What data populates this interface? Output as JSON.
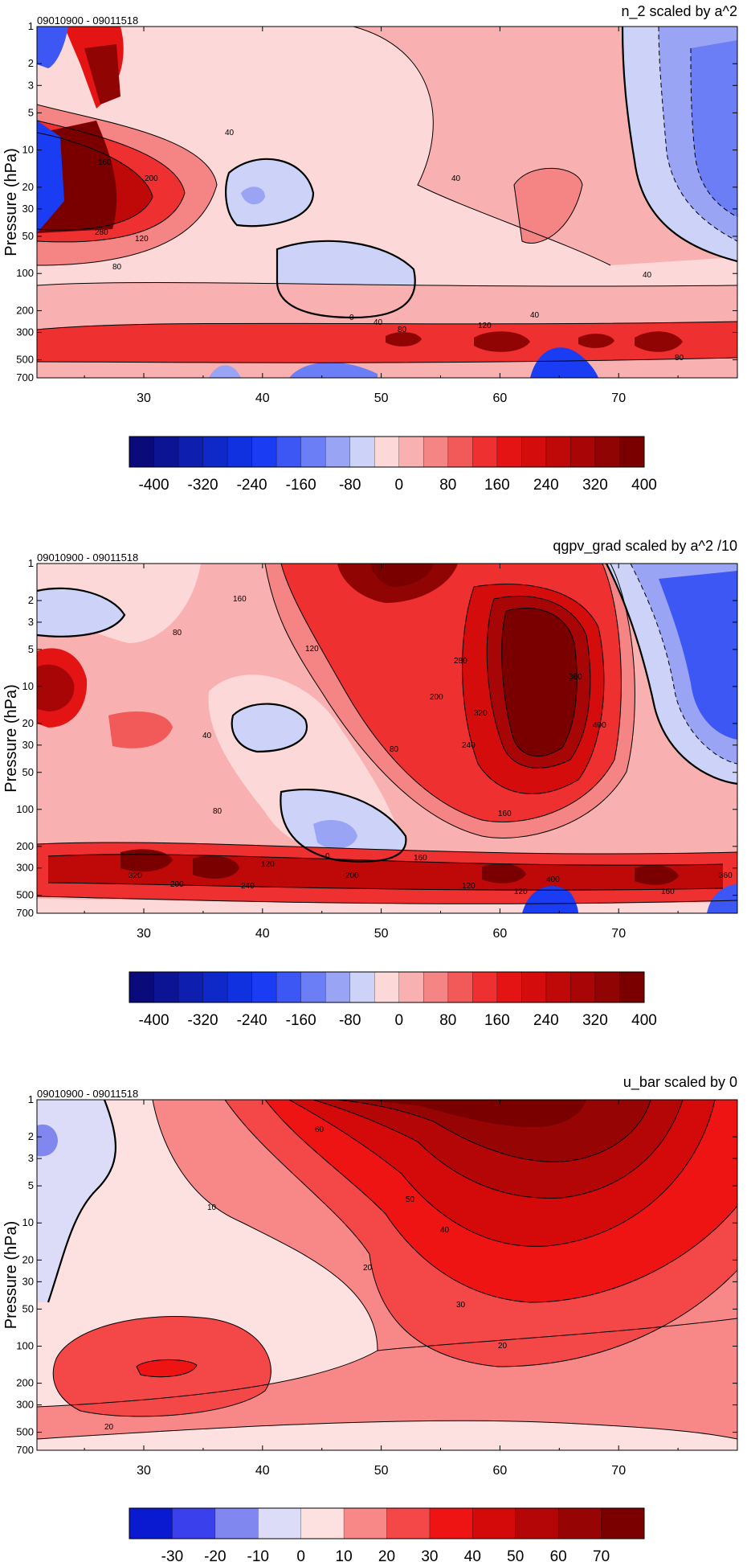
{
  "colors": {
    "neg": [
      "#0a0a7a",
      "#0c1494",
      "#0e1eae",
      "#0f28c8",
      "#1031e0",
      "#1a3cf2",
      "#3c57f4",
      "#6b7ef5",
      "#9aa4f5",
      "#cdd3f8"
    ],
    "pos": [
      "#fcd8d8",
      "#f9b0b0",
      "#f58484",
      "#f25a5a",
      "#ee3030",
      "#e51414",
      "#d50c0c",
      "#bf0808",
      "#a80606",
      "#900404",
      "#7a0000"
    ],
    "ubar": [
      "#0a1ad0",
      "#3a40ec",
      "#8088f0",
      "#dcdcf8",
      "#fde0e0",
      "#f88888",
      "#f44848",
      "#ee1414",
      "#d40a0a",
      "#b40606",
      "#960404",
      "#7a0000"
    ]
  },
  "chart_data": [
    {
      "type": "heatmap",
      "title": "n_2 scaled by a^2",
      "date_range": "09010900 - 09011518",
      "ylabel": "Pressure (hPa)",
      "yticks": [
        "1",
        "2",
        "3",
        "5",
        "10",
        "20",
        "30",
        "50",
        "100",
        "200",
        "300",
        "500",
        "700"
      ],
      "xticks": [
        "30",
        "40",
        "50",
        "60",
        "70"
      ],
      "xlim": [
        21,
        80
      ],
      "colorbar_labels": [
        "-400",
        "-320",
        "-240",
        "-160",
        "-80",
        "0",
        "80",
        "160",
        "240",
        "320",
        "400"
      ],
      "contour_labels": [
        "40",
        "40",
        "160",
        "200",
        "280",
        "120",
        "80",
        "0",
        "40",
        "80",
        "120",
        "40",
        "40",
        "80"
      ]
    },
    {
      "type": "heatmap",
      "title": "qgpv_grad scaled by a^2 /10",
      "date_range": "09010900 - 09011518",
      "ylabel": "Pressure (hPa)",
      "yticks": [
        "1",
        "2",
        "3",
        "5",
        "10",
        "20",
        "30",
        "50",
        "100",
        "200",
        "300",
        "500",
        "700"
      ],
      "xticks": [
        "30",
        "40",
        "50",
        "60",
        "70"
      ],
      "xlim": [
        21,
        80
      ],
      "colorbar_labels": [
        "-400",
        "-320",
        "-240",
        "-160",
        "-80",
        "0",
        "80",
        "160",
        "240",
        "320",
        "400"
      ],
      "contour_labels": [
        "160",
        "80",
        "120",
        "200",
        "280",
        "320",
        "360",
        "400",
        "240",
        "40",
        "80",
        "80",
        "160",
        "0",
        "120",
        "320",
        "200",
        "160",
        "200",
        "240",
        "120",
        "400",
        "120",
        "360",
        "160"
      ]
    },
    {
      "type": "heatmap",
      "title": "u_bar scaled by 0",
      "date_range": "09010900 - 09011518",
      "ylabel": "Pressure (hPa)",
      "yticks": [
        "1",
        "2",
        "3",
        "5",
        "10",
        "20",
        "30",
        "50",
        "100",
        "200",
        "300",
        "500",
        "700"
      ],
      "xticks": [
        "30",
        "40",
        "50",
        "60",
        "70"
      ],
      "xlim": [
        21,
        80
      ],
      "colorbar_labels": [
        "-30",
        "-20",
        "-10",
        "0",
        "10",
        "20",
        "30",
        "40",
        "50",
        "60",
        "70"
      ],
      "contour_labels": [
        "60",
        "50",
        "10",
        "40",
        "20",
        "30",
        "20",
        "20"
      ]
    }
  ]
}
